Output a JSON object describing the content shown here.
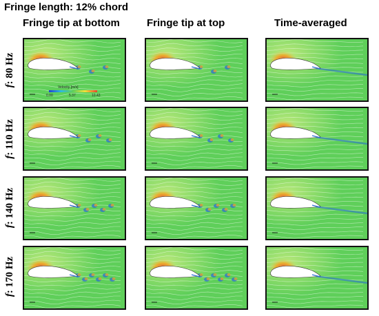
{
  "title": "Fringe length: 12% chord",
  "columns": [
    {
      "label": "Fringe tip at bottom"
    },
    {
      "label": "Fringe tip at top"
    },
    {
      "label": "Time-averaged"
    }
  ],
  "rows": [
    {
      "var": "f",
      "freq": ": 80 Hz"
    },
    {
      "var": "f",
      "freq": ": 110 Hz"
    },
    {
      "var": "f",
      "freq": ": 140 Hz"
    },
    {
      "var": "f",
      "freq": ": 170 Hz"
    }
  ],
  "legend": {
    "title": "Velocity [m/s]",
    "ticks": [
      "0.00",
      "5.37",
      "10.43"
    ]
  },
  "colors": {
    "field_green": "#5fcf5a",
    "field_light": "#b8e87a",
    "leading_edge_red": "#e8442a",
    "leading_edge_orange": "#f5a623",
    "wake_blue": "#2c6fd1",
    "airfoil": "#ffffff"
  }
}
